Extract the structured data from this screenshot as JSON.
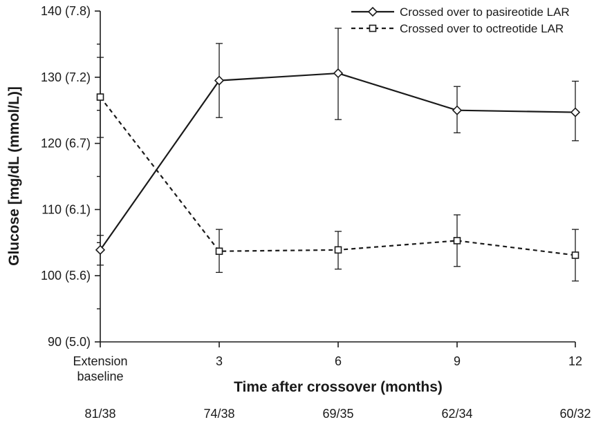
{
  "chart_data": {
    "type": "line",
    "xlabel": "Time after crossover (months)",
    "ylabel": "Glucose [mg/dL (mmol/L)]",
    "ylim": [
      90,
      140
    ],
    "yticks": [
      {
        "value": 90,
        "label": "90 (5.0)"
      },
      {
        "value": 100,
        "label": "100 (5.6)"
      },
      {
        "value": 110,
        "label": "110 (6.1)"
      },
      {
        "value": 120,
        "label": "120 (6.7)"
      },
      {
        "value": 130,
        "label": "130 (7.2)"
      },
      {
        "value": 140,
        "label": "140 (7.8)"
      }
    ],
    "categories": [
      [
        "Extension",
        "baseline"
      ],
      [
        "3"
      ],
      [
        "6"
      ],
      [
        "9"
      ],
      [
        "12"
      ]
    ],
    "n_labels": [
      "81/38",
      "74/38",
      "69/35",
      "62/34",
      "60/32"
    ],
    "series": [
      {
        "name": "Crossed over to pasireotide LAR",
        "marker": "diamond",
        "line": "solid",
        "values": [
          103.9,
          129.5,
          130.6,
          125.0,
          124.7
        ],
        "error_low": [
          101.6,
          123.9,
          123.6,
          121.6,
          120.4
        ],
        "error_high": [
          106.1,
          135.1,
          137.4,
          128.6,
          129.4
        ]
      },
      {
        "name": "Crossed over to octreotide LAR",
        "marker": "square",
        "line": "dashed",
        "values": [
          127.0,
          103.7,
          103.9,
          105.3,
          103.1
        ],
        "error_low": [
          120.9,
          100.5,
          101.0,
          101.4,
          99.2
        ],
        "error_high": [
          133.0,
          107.0,
          106.7,
          109.2,
          107.0
        ]
      }
    ],
    "legend_position": "top-right",
    "grid": false
  }
}
